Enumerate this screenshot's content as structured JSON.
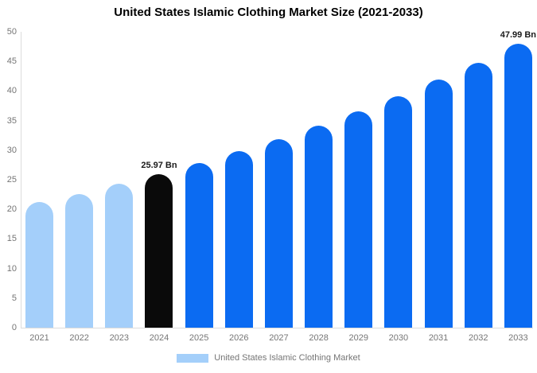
{
  "title": "United States Islamic Clothing Market Size (2021-2033)",
  "legend": {
    "label": "United States Islamic Clothing Market",
    "swatch_color": "#a4cffa"
  },
  "colors": {
    "light_blue": "#a4cffa",
    "blue": "#0b6bf2",
    "black": "#0a0a0a",
    "axis_line": "#dcdcdc",
    "tick_text": "#757575",
    "annotation_text": "#1a1a1a"
  },
  "chart_data": {
    "type": "bar",
    "title": "United States Islamic Clothing Market Size (2021-2033)",
    "categories": [
      "2021",
      "2022",
      "2023",
      "2024",
      "2025",
      "2026",
      "2027",
      "2028",
      "2029",
      "2030",
      "2031",
      "2032",
      "2033"
    ],
    "values": [
      21.2,
      22.6,
      24.3,
      25.97,
      27.8,
      29.8,
      31.9,
      34.1,
      36.5,
      39.1,
      41.9,
      44.8,
      47.99
    ],
    "bar_color_keys": [
      "light_blue",
      "light_blue",
      "light_blue",
      "black",
      "blue",
      "blue",
      "blue",
      "blue",
      "blue",
      "blue",
      "blue",
      "blue",
      "blue"
    ],
    "annotations": [
      {
        "index": 3,
        "text": "25.97 Bn"
      },
      {
        "index": 12,
        "text": "47.99 Bn"
      }
    ],
    "xlabel": "",
    "ylabel": "",
    "ylim": [
      0,
      50
    ],
    "yticks": [
      0,
      5,
      10,
      15,
      20,
      25,
      30,
      35,
      40,
      45,
      50
    ],
    "grid": false,
    "legend_entries": [
      "United States Islamic Clothing Market"
    ],
    "legend_position": "bottom-center",
    "value_unit": "Bn"
  }
}
